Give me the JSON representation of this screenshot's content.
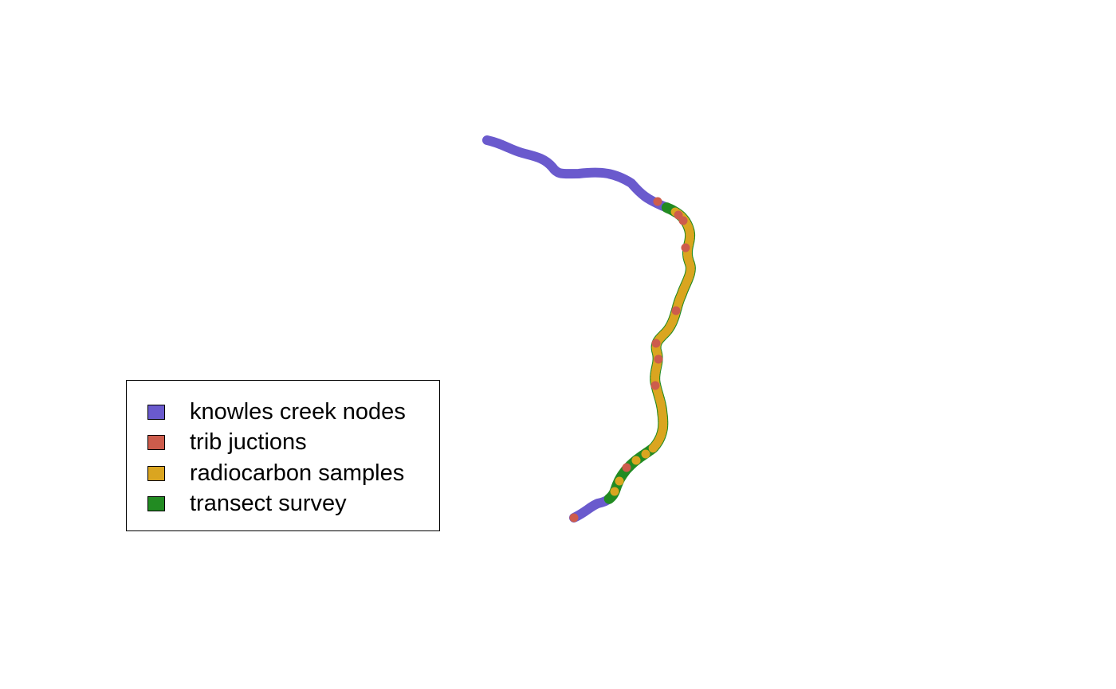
{
  "map": {
    "colors": {
      "nodes": "#6a5acd",
      "junctions": "#cd5c4c",
      "radiocarbon": "#daa520",
      "transect": "#228b22"
    }
  },
  "legend": {
    "items": [
      {
        "label": "knowles creek nodes",
        "color": "#6a5acd"
      },
      {
        "label": "trib juctions",
        "color": "#cd5c4c"
      },
      {
        "label": "radiocarbon samples",
        "color": "#daa520"
      },
      {
        "label": "transect survey",
        "color": "#228b22"
      }
    ]
  }
}
